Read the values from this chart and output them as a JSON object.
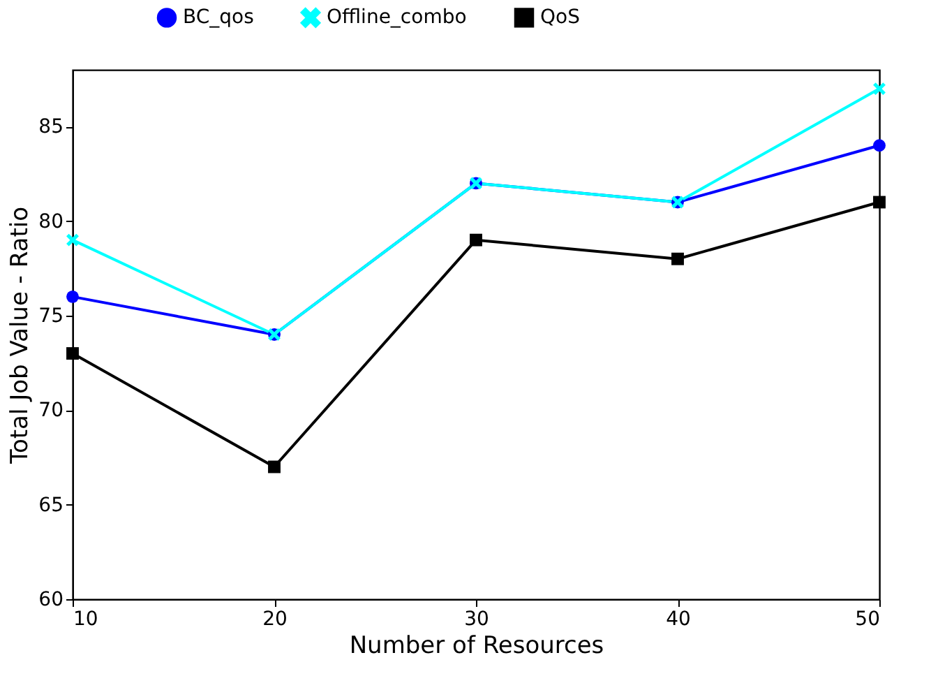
{
  "chart_data": {
    "type": "line",
    "xlabel": "Number of Resources",
    "ylabel": "Total Job Value - Ratio",
    "x": [
      10,
      20,
      30,
      40,
      50
    ],
    "series": [
      {
        "name": "BC_qos",
        "color": "#0000ff",
        "marker": "circle",
        "values": [
          76,
          74,
          82,
          81,
          84
        ]
      },
      {
        "name": "Offline_combo",
        "color": "#00ffff",
        "marker": "cross",
        "values": [
          79,
          74,
          82,
          81,
          87
        ]
      },
      {
        "name": "QoS",
        "color": "#000000",
        "marker": "square",
        "values": [
          73,
          67,
          79,
          78,
          81
        ]
      }
    ],
    "xlim": [
      10,
      50
    ],
    "xticks": [
      10,
      20,
      30,
      40,
      50
    ],
    "ylim": [
      60,
      88
    ],
    "yticks": [
      60,
      65,
      70,
      75,
      80,
      85
    ],
    "grid": false,
    "legend": "top",
    "line_style": "solid"
  }
}
